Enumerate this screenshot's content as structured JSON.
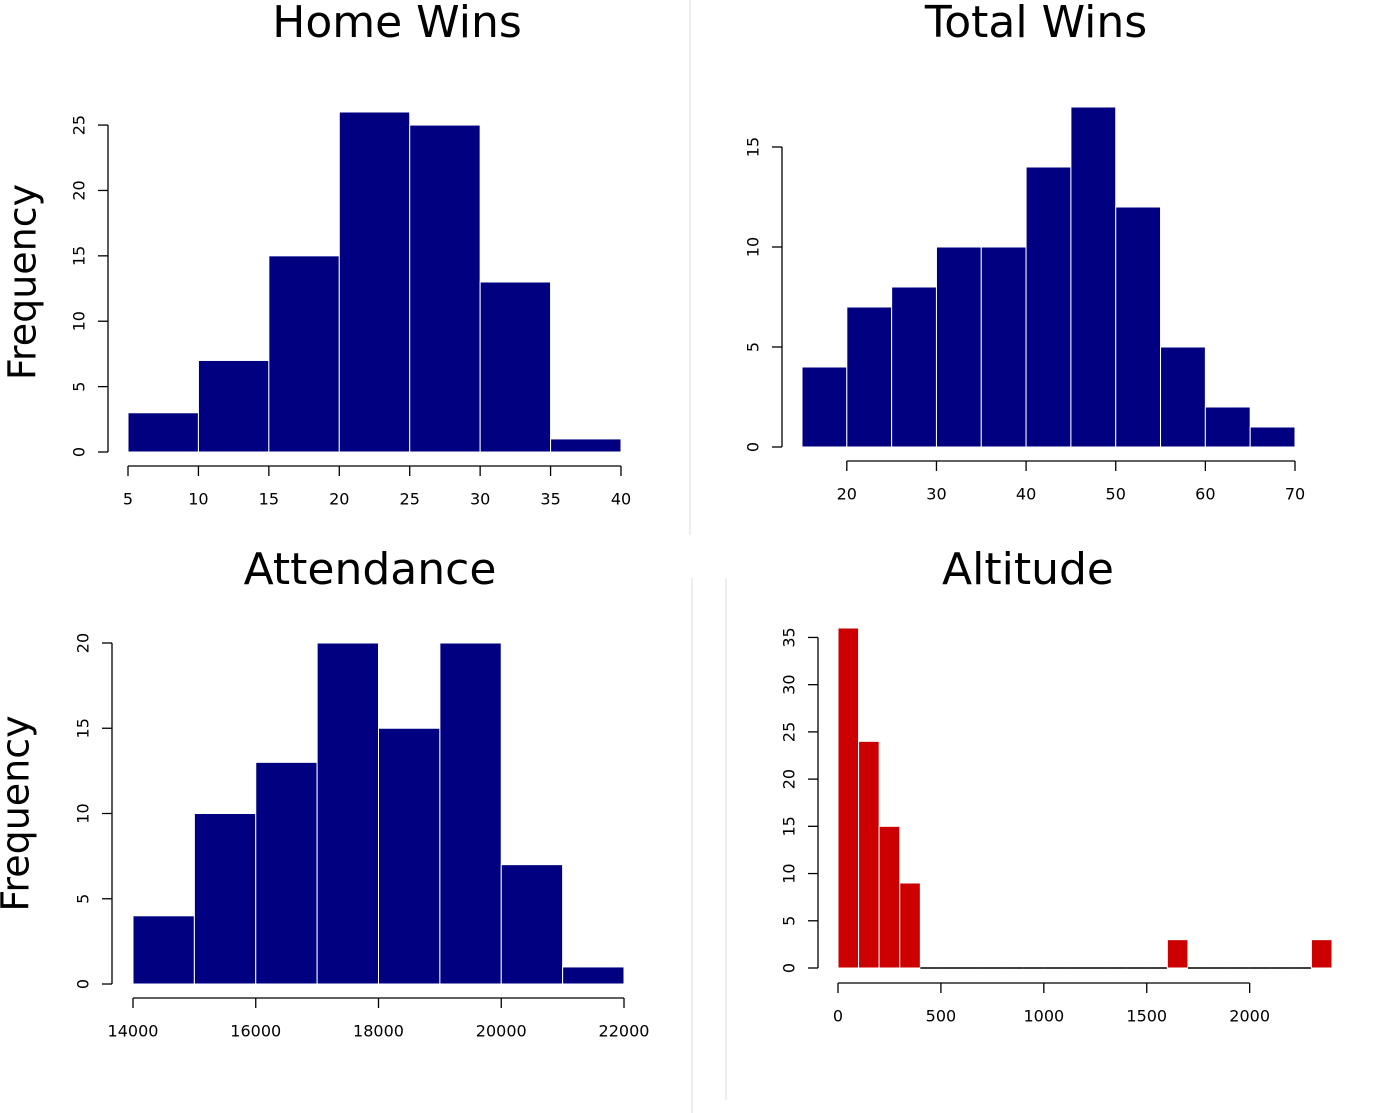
{
  "chart_data": [
    {
      "type": "histogram",
      "title": "Home Wins",
      "y_label": "Frequency",
      "color": "#000080",
      "bins": [
        5,
        10,
        15,
        20,
        25,
        30,
        35,
        40
      ],
      "values": [
        3,
        7,
        15,
        26,
        25,
        13,
        1
      ],
      "xlim": [
        5,
        40
      ],
      "xticks": [
        5,
        10,
        15,
        20,
        25,
        30,
        35,
        40
      ],
      "ylim": [
        0,
        26
      ],
      "yticks": [
        0,
        5,
        10,
        15,
        20,
        25
      ]
    },
    {
      "type": "histogram",
      "title": "Total Wins",
      "color": "#000080",
      "bins": [
        15,
        20,
        25,
        30,
        35,
        40,
        45,
        50,
        55,
        60,
        65,
        70
      ],
      "values": [
        4,
        7,
        8,
        10,
        10,
        14,
        17,
        12,
        5,
        2,
        1
      ],
      "xlim": [
        15,
        70
      ],
      "xticks": [
        20,
        30,
        40,
        50,
        60,
        70
      ],
      "ylim": [
        0,
        17
      ],
      "yticks": [
        0,
        5,
        10,
        15
      ]
    },
    {
      "type": "histogram",
      "title": "Attendance",
      "y_label": "Frequency",
      "color": "#000080",
      "bins": [
        14000,
        15000,
        16000,
        17000,
        18000,
        19000,
        20000,
        21000,
        22000
      ],
      "values": [
        4,
        10,
        13,
        20,
        15,
        20,
        7,
        1
      ],
      "xlim": [
        14000,
        22000
      ],
      "xticks": [
        14000,
        16000,
        18000,
        20000,
        22000
      ],
      "ylim": [
        0,
        20
      ],
      "yticks": [
        0,
        5,
        10,
        15,
        20
      ]
    },
    {
      "type": "histogram",
      "title": "Altitude",
      "color": "#cc0000",
      "bins": [
        0,
        100,
        200,
        300,
        400,
        500,
        600,
        700,
        800,
        900,
        1000,
        1100,
        1200,
        1300,
        1400,
        1500,
        1600,
        1700,
        1800,
        1900,
        2000,
        2100,
        2200,
        2300,
        2400
      ],
      "values": [
        36,
        24,
        15,
        9,
        0,
        0,
        0,
        0,
        0,
        0,
        0,
        0,
        0,
        0,
        0,
        0,
        3,
        0,
        0,
        0,
        0,
        0,
        0,
        3
      ],
      "xlim": [
        0,
        2400
      ],
      "xticks": [
        0,
        500,
        1000,
        1500,
        2000
      ],
      "ylim": [
        0,
        36
      ],
      "yticks": [
        0,
        5,
        10,
        15,
        20,
        25,
        30,
        35
      ]
    }
  ]
}
